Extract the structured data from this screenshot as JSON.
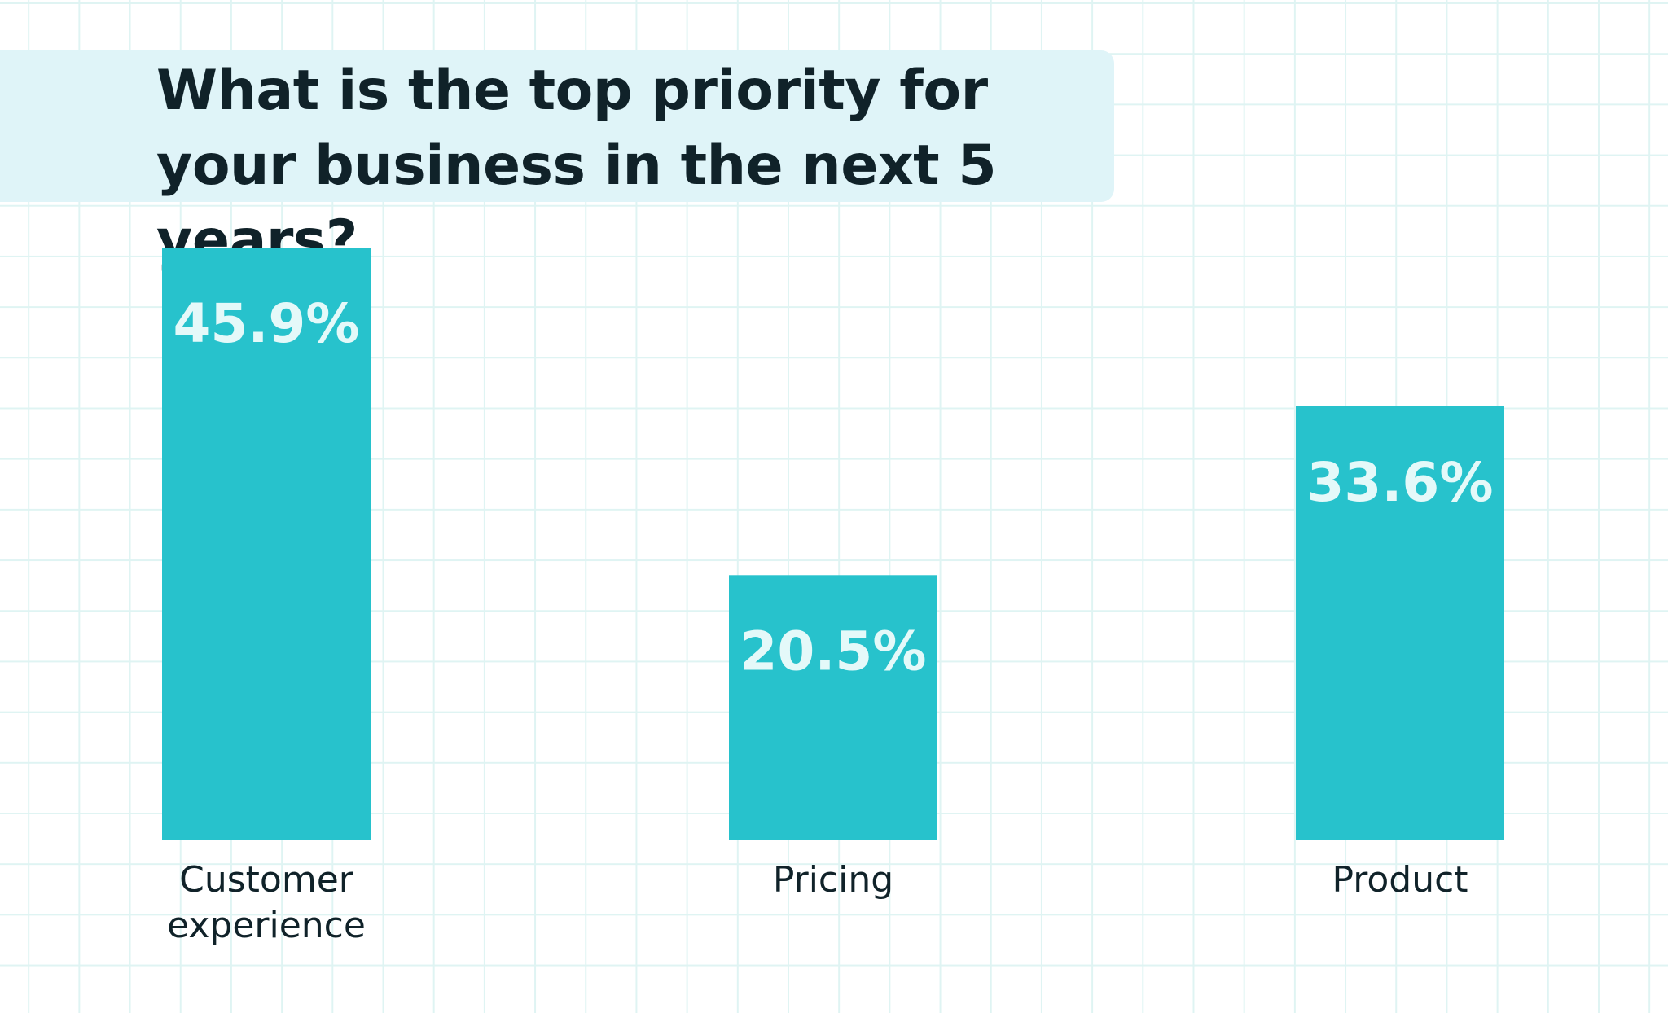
{
  "chart_data": {
    "type": "bar",
    "title": "What is the top priority for your business in the next 5 years?",
    "categories": [
      "Customer experience",
      "Pricing",
      "Product"
    ],
    "category_lines": [
      [
        "Customer",
        "experience"
      ],
      [
        "Pricing"
      ],
      [
        "Product"
      ]
    ],
    "values": [
      45.9,
      20.5,
      33.6
    ],
    "data_labels": [
      "45.9%",
      "20.5%",
      "33.6%"
    ],
    "ylim": [
      0,
      45.9
    ],
    "grid": true,
    "legend": "none",
    "colors": {
      "bar": "#27c2cc",
      "data_label": "#e4f9f9",
      "title_background": "#dff4f8",
      "grid": "#dff4f3",
      "text": "#102229"
    }
  }
}
